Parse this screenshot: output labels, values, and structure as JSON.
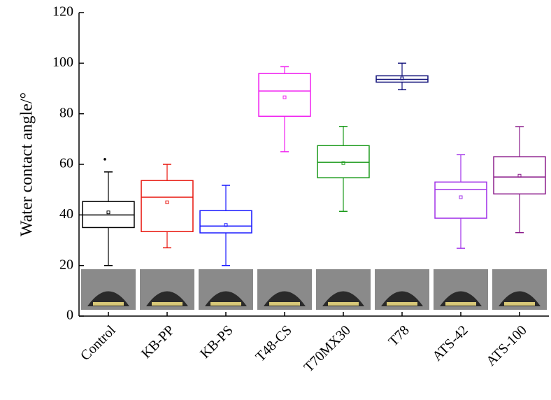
{
  "chart_data": {
    "type": "box",
    "y_label": "Water contact angle/°",
    "categories": [
      "Control",
      "KB-PP",
      "KB-PS",
      "T48-CS",
      "T70MX30",
      "T78",
      "ATS-42",
      "ATS-100"
    ],
    "boxes": [
      {
        "whisker_low": 20,
        "q1": 35,
        "median": 40,
        "q3": 45.3,
        "whisker_high": 57,
        "mean": 41,
        "outliers": [
          62
        ],
        "color": "#000000"
      },
      {
        "whisker_low": 27,
        "q1": 33.4,
        "median": 47,
        "q3": 53.6,
        "whisker_high": 60,
        "mean": 45,
        "color": "#e8140c"
      },
      {
        "whisker_low": 20,
        "q1": 32.9,
        "median": 35.6,
        "q3": 41.7,
        "whisker_high": 51.7,
        "mean": 36,
        "color": "#1a1aff"
      },
      {
        "whisker_low": 65,
        "q1": 79,
        "median": 89,
        "q3": 95.9,
        "whisker_high": 98.6,
        "mean": 86.5,
        "color": "#f020f0"
      },
      {
        "whisker_low": 41.4,
        "q1": 54.7,
        "median": 60.8,
        "q3": 67.4,
        "whisker_high": 75,
        "mean": 60.5,
        "color": "#1a9a1a"
      },
      {
        "whisker_low": 89.5,
        "q1": 92.5,
        "median": 93.6,
        "q3": 95,
        "whisker_high": 100,
        "mean": 94,
        "color": "#10107a"
      },
      {
        "whisker_low": 26.8,
        "q1": 38.7,
        "median": 50,
        "q3": 53,
        "whisker_high": 63.8,
        "mean": 47,
        "color": "#a030e8"
      },
      {
        "whisker_low": 33,
        "q1": 48.3,
        "median": 55,
        "q3": 63,
        "whisker_high": 74.9,
        "mean": 55.5,
        "color": "#8a1a8a"
      }
    ],
    "ylim": [
      0,
      120
    ],
    "yticks": [
      0,
      20,
      40,
      60,
      80,
      100,
      120
    ]
  }
}
